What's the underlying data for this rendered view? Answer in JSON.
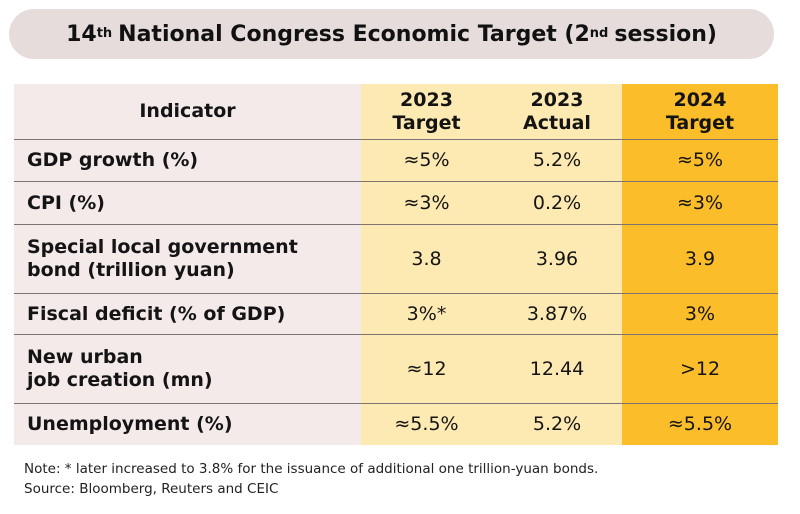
{
  "title": {
    "prefix": "14",
    "superscript": "th",
    "main": "National Congress Economic Target (2",
    "session_superscript": "nd",
    "suffix": "session)"
  },
  "table": {
    "headers": [
      [
        "Indicator"
      ],
      [
        "2023",
        "Target"
      ],
      [
        "2023",
        "Actual"
      ],
      [
        "2024",
        "Target"
      ]
    ],
    "rows": [
      {
        "indicator": [
          "GDP growth (%)"
        ],
        "target_2023": "≈5%",
        "actual_2023": "5.2%",
        "target_2024": "≈5%"
      },
      {
        "indicator": [
          "CPI (%)"
        ],
        "target_2023": "≈3%",
        "actual_2023": "0.2%",
        "target_2024": "≈3%"
      },
      {
        "indicator": [
          "Special local government",
          "bond (trillion yuan)"
        ],
        "target_2023": "3.8",
        "actual_2023": "3.96",
        "target_2024": "3.9"
      },
      {
        "indicator": [
          "Fiscal deficit (% of GDP)"
        ],
        "target_2023": "3%*",
        "actual_2023": "3.87%",
        "target_2024": "3%"
      },
      {
        "indicator": [
          "New urban",
          "job creation (mn)"
        ],
        "target_2023": "≈12",
        "actual_2023": "12.44",
        "target_2024": ">12"
      },
      {
        "indicator": [
          "Unemployment (%)"
        ],
        "target_2023": "≈5.5%",
        "actual_2023": "5.2%",
        "target_2024": "≈5.5%"
      }
    ]
  },
  "notes": {
    "note": "Note: * later increased to 3.8% for the issuance of additional one trillion-yuan bonds.",
    "source": "Source: Bloomberg, Reuters and CEIC"
  },
  "colors": {
    "title_bg": "#e6dcdc",
    "indicator_bg": "#f4eaea",
    "light_yellow": "#fde9b2",
    "gold": "#fbbd2a"
  }
}
